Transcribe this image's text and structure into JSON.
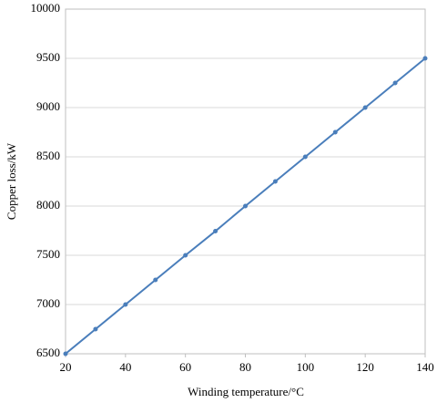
{
  "chart_data": {
    "type": "line",
    "x_label": "Winding temperature/°C",
    "y_label": "Copper loss/kW",
    "x": [
      20,
      30,
      40,
      50,
      60,
      70,
      80,
      90,
      100,
      110,
      120,
      130,
      140
    ],
    "values": [
      6500,
      6750,
      7000,
      7250,
      7500,
      7745,
      8000,
      8250,
      8500,
      8750,
      9000,
      9250,
      9500
    ],
    "color": "#4a7ebb",
    "xlim": [
      20,
      140
    ],
    "xticks": [
      20,
      40,
      60,
      80,
      100,
      120,
      140
    ],
    "ylim": [
      6500,
      10000
    ],
    "yticks": [
      6500,
      7000,
      7500,
      8000,
      8500,
      9000,
      9500,
      10000
    ],
    "grid": true
  }
}
